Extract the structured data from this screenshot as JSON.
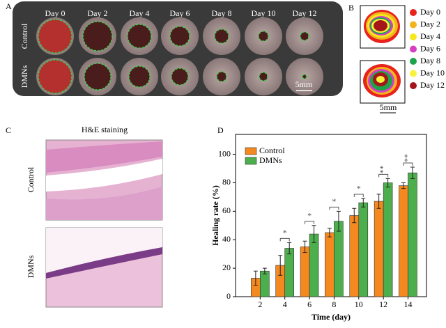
{
  "panel_a": {
    "label": "A",
    "days": [
      "Day 0",
      "Day 2",
      "Day 4",
      "Day 6",
      "Day 8",
      "Day 10",
      "Day 12"
    ],
    "rows": [
      "Control",
      "DMNs"
    ],
    "scale": "5mm"
  },
  "panel_b": {
    "label": "B",
    "legend": [
      "Day 0",
      "Day 2",
      "Day 4",
      "Day 6",
      "Day 8",
      "Day 10",
      "Day 12"
    ],
    "scale": "5mm"
  },
  "panel_c": {
    "label": "C",
    "title": "H&E staining",
    "rows": [
      "Control",
      "DMNs"
    ]
  },
  "panel_d": {
    "label": "D"
  },
  "chart_data": {
    "type": "bar",
    "x": [
      2,
      4,
      6,
      8,
      10,
      12,
      14
    ],
    "xlim": [
      0,
      15.5
    ],
    "xticks": [
      2,
      4,
      6,
      8,
      10,
      12,
      14
    ],
    "ylim": [
      0,
      114
    ],
    "yticks": [
      0,
      20,
      40,
      60,
      80,
      100
    ],
    "xlabel": "Time (day)",
    "ylabel": "Healing rate (%)",
    "legend": "upper left",
    "series": [
      {
        "name": "Control",
        "color": "#f5891f",
        "values": [
          13,
          22,
          35,
          45,
          57,
          67,
          78
        ],
        "errors": [
          5,
          7,
          4,
          3,
          5,
          5,
          2
        ]
      },
      {
        "name": "DMNs",
        "color": "#4cae4c",
        "values": [
          18,
          34,
          44,
          53,
          66,
          80,
          87
        ],
        "errors": [
          2,
          4,
          6,
          7,
          3,
          3,
          4
        ]
      }
    ],
    "significance": [
      null,
      "*",
      "*",
      "*",
      "*",
      "**",
      "**"
    ]
  }
}
